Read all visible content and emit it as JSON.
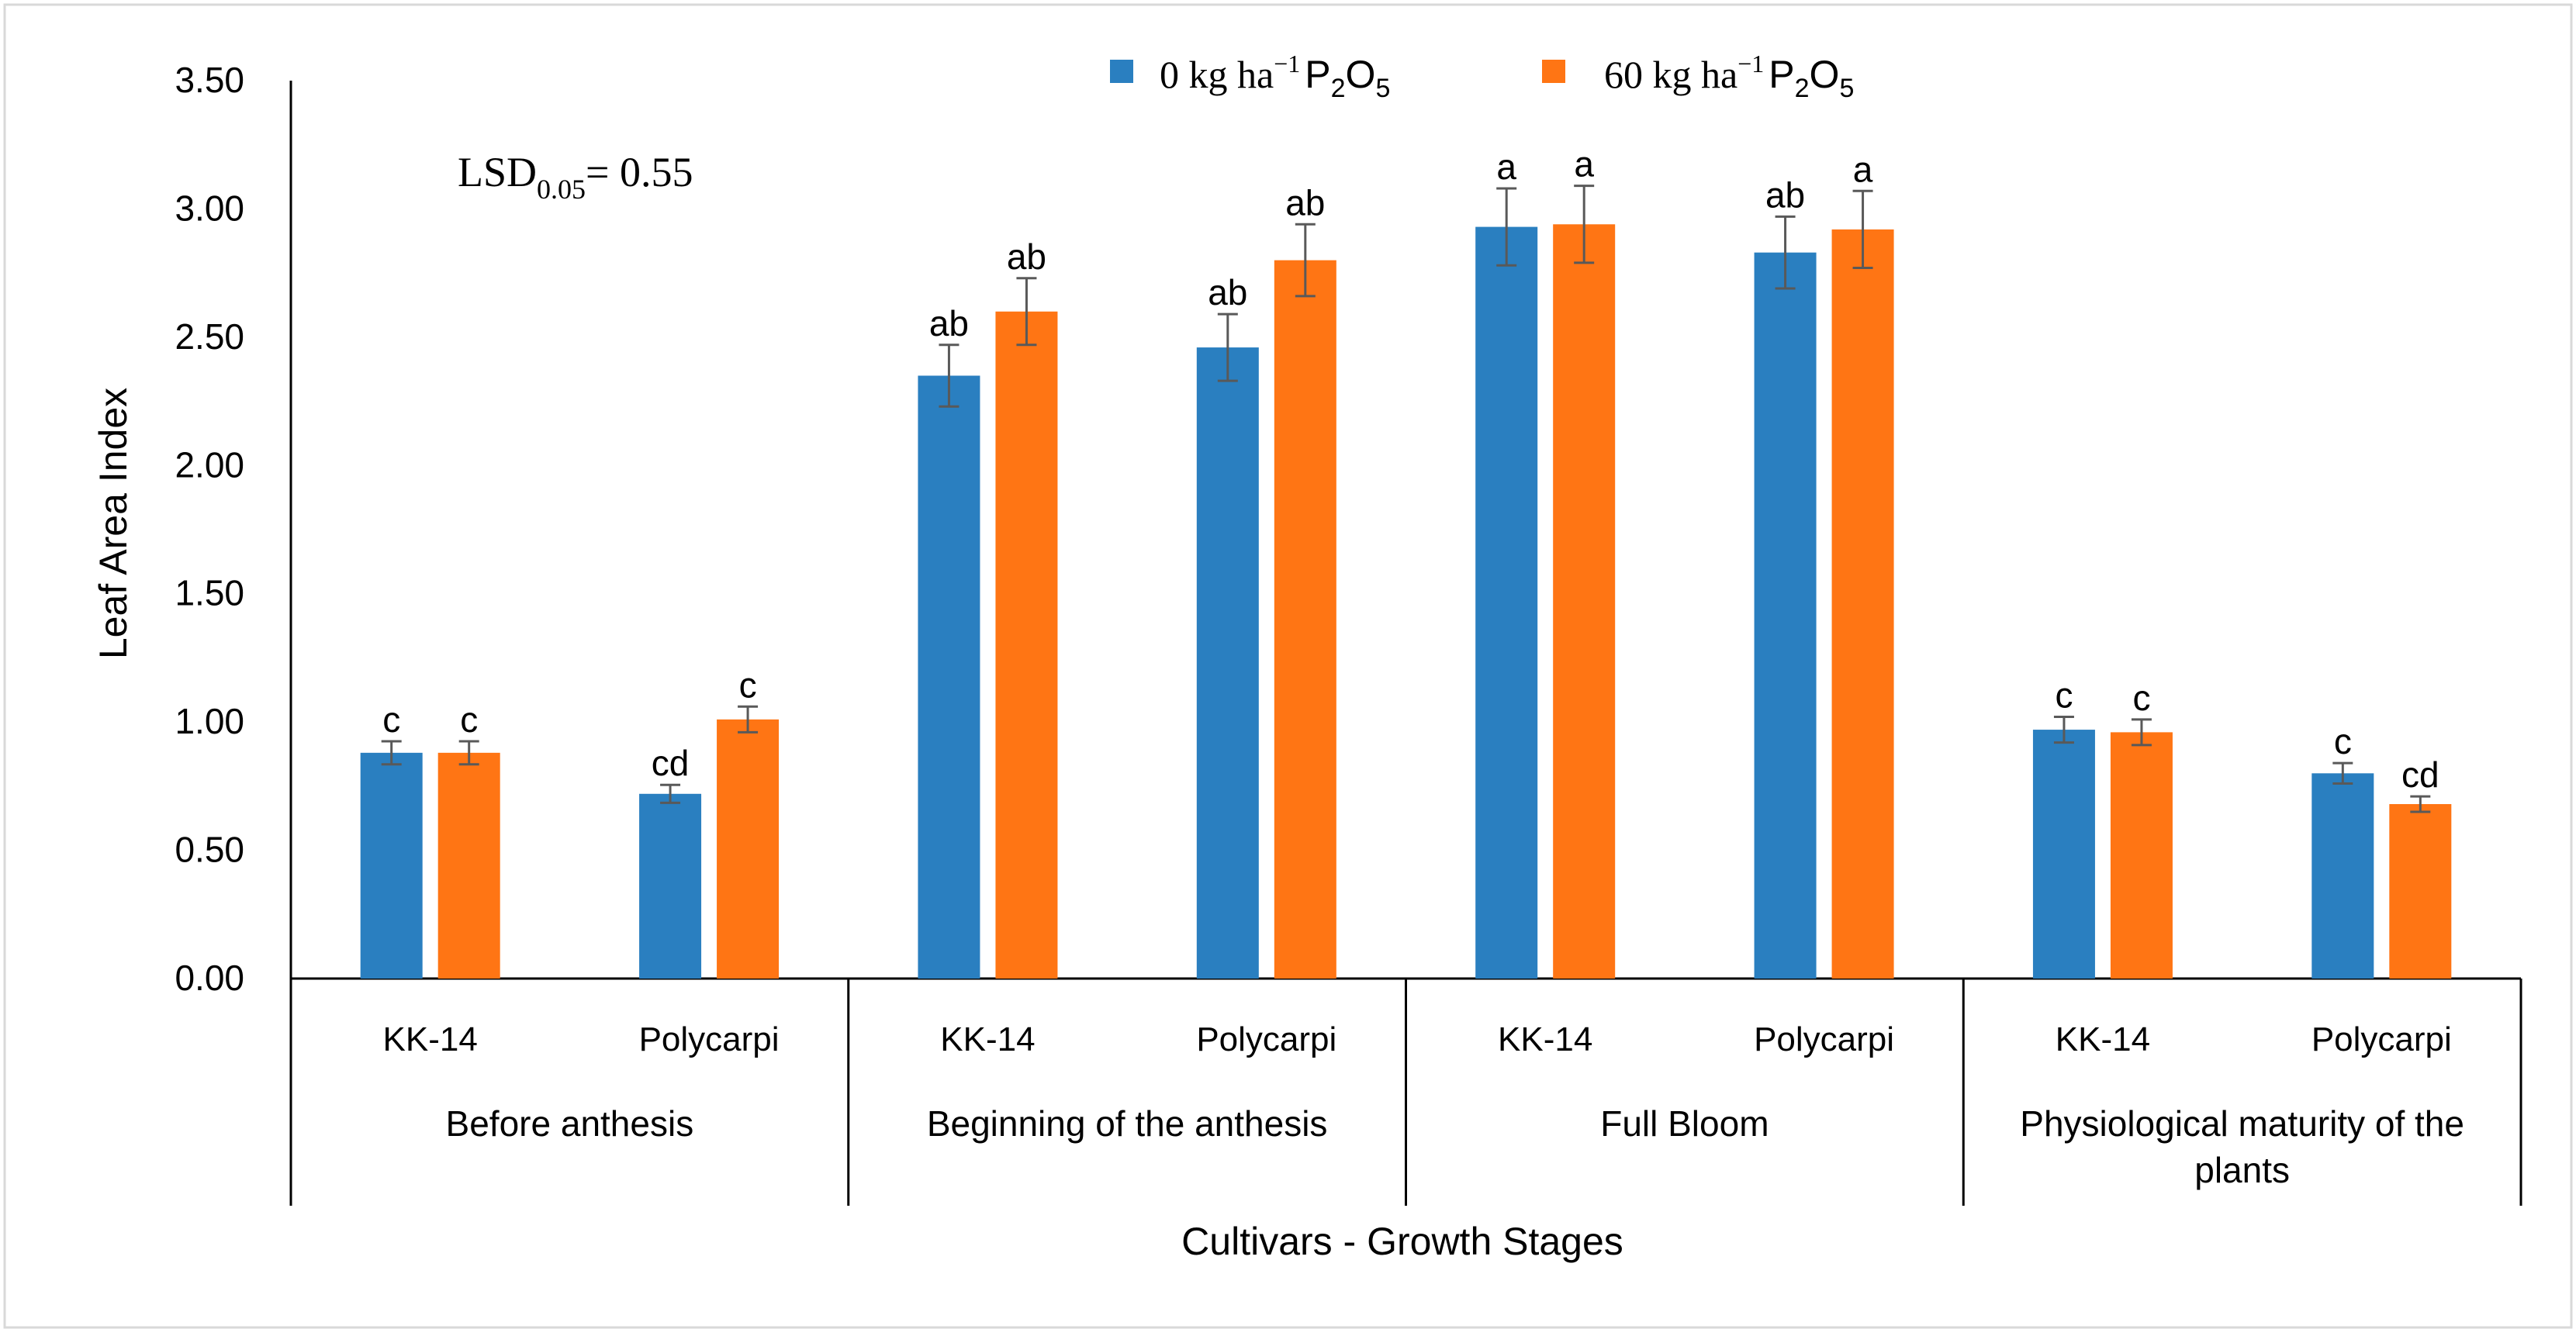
{
  "chart_data": {
    "type": "bar",
    "ylabel": "Leaf Area Index",
    "xlabel": "Cultivars - Growth Stages",
    "ylim": [
      0,
      3.5
    ],
    "yticks": [
      "0.00",
      "0.50",
      "1.00",
      "1.50",
      "2.00",
      "2.50",
      "3.00",
      "3.50"
    ],
    "annotation": {
      "lsd_prefix": "LSD",
      "lsd_subscript": "0.05",
      "lsd_value": "= 0.55"
    },
    "legend": {
      "position": "top-center",
      "entries": [
        {
          "prefix": "0 kg ha",
          "sup": "−1",
          "chem": "P",
          "sub1": "2",
          "chem2": "O",
          "sub2": "5"
        },
        {
          "prefix": "60 kg ha",
          "sup": "−1",
          "chem": "P",
          "sub1": "2",
          "chem2": "O",
          "sub2": "5"
        }
      ]
    },
    "stages": [
      "Before anthesis",
      "Beginning of the anthesis",
      "Full Bloom",
      "Physiological maturity of the plants"
    ],
    "stage_label_lines": [
      [
        "Before anthesis"
      ],
      [
        "Beginning of the anthesis"
      ],
      [
        "Full Bloom"
      ],
      [
        "Physiological maturity of the",
        "plants"
      ]
    ],
    "categories": [
      "KK-14",
      "Polycarpi",
      "KK-14",
      "Polycarpi",
      "KK-14",
      "Polycarpi",
      "KK-14",
      "Polycarpi"
    ],
    "series": [
      {
        "name": "0 kg ha−1 P2O5",
        "color": "#2a7fc0",
        "values": [
          0.88,
          0.72,
          2.35,
          2.46,
          2.93,
          2.83,
          0.97,
          0.8
        ],
        "errors": [
          0.045,
          0.035,
          0.12,
          0.13,
          0.15,
          0.14,
          0.05,
          0.04
        ],
        "letters": [
          "c",
          "cd",
          "ab",
          "ab",
          "a",
          "ab",
          "c",
          "c"
        ]
      },
      {
        "name": "60 kg ha−1 P2O5",
        "color": "#ff7514",
        "values": [
          0.88,
          1.01,
          2.6,
          2.8,
          2.94,
          2.92,
          0.96,
          0.68
        ],
        "errors": [
          0.045,
          0.05,
          0.13,
          0.14,
          0.15,
          0.15,
          0.05,
          0.03
        ],
        "letters": [
          "c",
          "c",
          "ab",
          "ab",
          "a",
          "a",
          "c",
          "cd"
        ]
      }
    ]
  }
}
